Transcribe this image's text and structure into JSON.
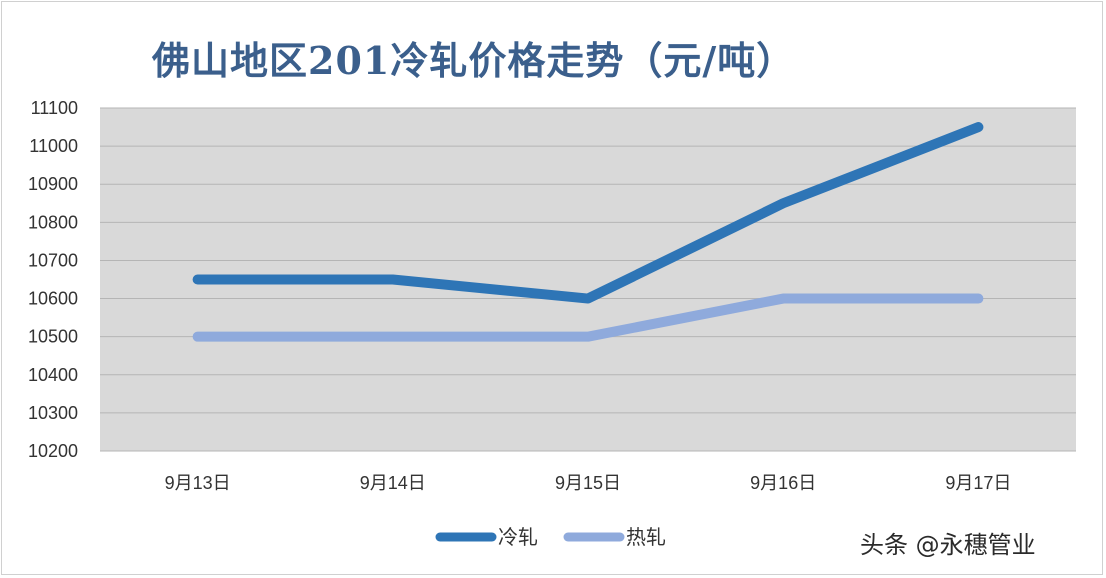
{
  "chart_data": {
    "type": "line",
    "title": "佛山地区201冷轧价格走势（元/吨）",
    "categories": [
      "9月13日",
      "9月14日",
      "9月15日",
      "9月16日",
      "9月17日"
    ],
    "series": [
      {
        "name": "冷轧",
        "values": [
          10650,
          10650,
          10600,
          10850,
          11050
        ],
        "color": "#2e75b6"
      },
      {
        "name": "热轧",
        "values": [
          10500,
          10500,
          10500,
          10600,
          10600
        ],
        "color": "#8faadc"
      }
    ],
    "ylim": [
      10200,
      11100
    ],
    "yticks": [
      10200,
      10300,
      10400,
      10500,
      10600,
      10700,
      10800,
      10900,
      11000,
      11100
    ],
    "grid": true,
    "plot_background": "#d9d9d9",
    "legend_position": "bottom"
  },
  "watermark": "头条 @永穗管业"
}
